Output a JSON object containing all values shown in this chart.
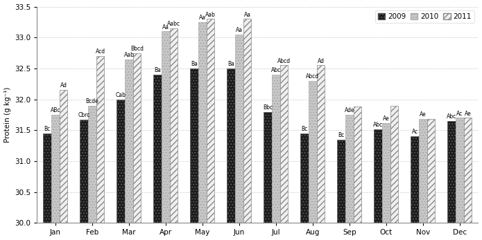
{
  "months": [
    "Jan",
    "Feb",
    "Mar",
    "Apr",
    "May",
    "Jun",
    "Jul",
    "Aug",
    "Sep",
    "Oct",
    "Nov",
    "Dec"
  ],
  "values_2009": [
    31.45,
    31.67,
    32.0,
    32.4,
    32.5,
    32.5,
    31.8,
    31.45,
    31.35,
    31.52,
    31.4,
    31.65
  ],
  "values_2010": [
    31.75,
    31.9,
    32.65,
    33.1,
    33.25,
    33.05,
    32.4,
    32.3,
    31.75,
    31.62,
    31.68,
    31.7
  ],
  "values_2011": [
    32.15,
    32.7,
    32.75,
    33.15,
    33.3,
    33.3,
    32.55,
    32.55,
    31.88,
    31.9,
    31.68,
    31.7
  ],
  "labels_2009": [
    "Bc",
    "Cbrc",
    "Cab",
    "Ba",
    "Ba",
    "Ba",
    "Bbc",
    "Bc",
    "Bc",
    "Abc",
    "Ac",
    "Abc"
  ],
  "labels_2010": [
    "ABc",
    "Bcde",
    "Aab",
    "Aa",
    "Aa",
    "Aa",
    "Abc",
    "Abcd",
    "Ade",
    "Ae",
    "Ae",
    "Ac"
  ],
  "labels_2011": [
    "Ad",
    "Acd",
    "Bbcd",
    "Aabc",
    "Aab",
    "Aa",
    "Abcd",
    "Ad",
    "",
    "",
    "",
    "Ae"
  ],
  "ylabel": "Protein (g kg⁻¹)",
  "ylim": [
    30.0,
    33.5
  ],
  "yticks": [
    30.0,
    30.5,
    31.0,
    31.5,
    32.0,
    32.5,
    33.0,
    33.5
  ],
  "legend_labels": [
    "2009",
    "2010",
    "2011"
  ],
  "color_2009": "#1a1a1a",
  "color_2010": "#c8c8c8",
  "color_2011": "#f0f0f0",
  "hatch_2009": "....",
  "hatch_2010": "....",
  "hatch_2011": "////",
  "edgecolor_2009": "#555555",
  "edgecolor_2010": "#aaaaaa",
  "edgecolor_2011": "#888888",
  "bar_width": 0.22,
  "fontsize_labels": 5.5,
  "fontsize_axis": 7.5,
  "fontsize_legend": 7.5,
  "grid_color": "#cccccc",
  "background_color": "#ffffff"
}
